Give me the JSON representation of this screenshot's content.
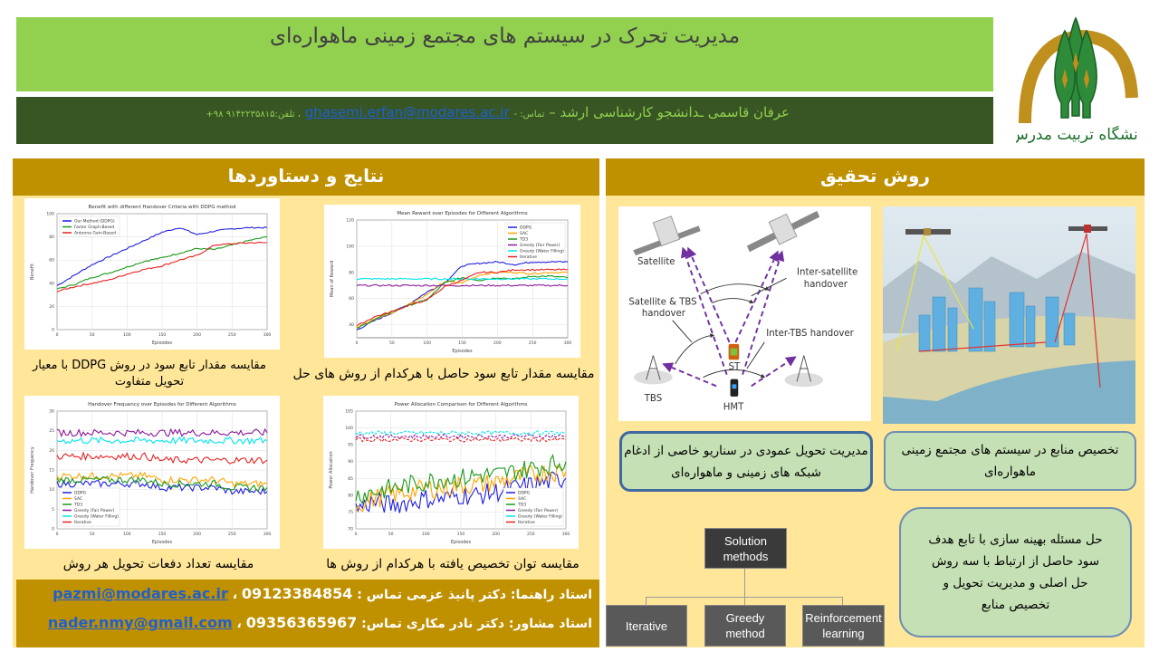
{
  "header": {
    "title": "مدیریت تحرک در سیستم های مجتمع زمینی ماهواره‌ای"
  },
  "info": {
    "name": "عرفان قاسمی ـدانشجو کارشناسی ارشد –",
    "contact_label": "تماس: -",
    "email": "ghasemi.erfan@modares.ac.ir",
    "phone_label": "، تلفن:",
    "phone": "۹۱۴۲۲۳۵۸۱۵ ۹۸+"
  },
  "logo": {
    "text": "دانشگاه تربیت مدرس"
  },
  "colors": {
    "title_green": "#92d050",
    "info_dark_green": "#375623",
    "gold": "#bf9000",
    "panel_yellow": "#ffe699",
    "box_green": "#c5e0b4"
  },
  "results": {
    "heading": "نتایج و دستاوردها",
    "captions": [
      "مقایسه مقدار تابع سود در روش DDPG  با معیار تحویل متفاوت",
      "مقایسه مقدار تابع سود حاصل با هرکدام از روش های حل",
      "مقایسه تعداد دفعات تحویل هر روش",
      "مقایسه توان تخصیص یافته با هرکدام از روش ها"
    ]
  },
  "advisors": {
    "supervisor_label": "استاد راهنما: دکتر پانیذ عزمی تماس :",
    "supervisor_email": "pazmi@modares.ac.ir",
    "supervisor_phone": "09123384854",
    "consultant_label": "استاد مشاور: دکتر نادر مکاری  تماس:",
    "consultant_email": "nader.nmy@gmail.com",
    "consultant_phone": "09356365967",
    "separator": "،"
  },
  "method": {
    "heading": "روش تحقیق",
    "diagram": {
      "satellite": "Satellite",
      "inter_satellite": [
        "Inter-satellite",
        "handover"
      ],
      "sat_tbs": [
        "Satellite & TBS",
        "handover"
      ],
      "inter_tbs": "Inter-TBS handover",
      "st": "ST",
      "tbs": "TBS",
      "hmt": "HMT"
    },
    "box_handover": "مدیریت تحویل عمودی در سناریو خاصی از ادغام شبکه های زمینی و ماهواره‌ای",
    "box_resource": "تخصیص منابع در سیستم های مجتمع زمینی ماهواره‌ای",
    "box_optimization": "حل مسئله بهینه سازی با تابع هدف سود حاصل از ارتباط با سه روش حل اصلی و مدیریت تحویل و تخصیص منابع",
    "tree": {
      "root": "Solution methods",
      "children": [
        "Iterative",
        "Greedy method",
        "Reinforcement learning"
      ]
    }
  },
  "chart_data": [
    {
      "type": "line",
      "title": "Benefit with different Handover Criteria with DDPG method",
      "xlabel": "Episodes",
      "ylabel": "Benefit",
      "xlim": [
        0,
        300
      ],
      "ylim": [
        0,
        100
      ],
      "xticks": [
        0,
        50,
        100,
        150,
        200,
        250,
        300
      ],
      "yticks": [
        0,
        20,
        40,
        60,
        80,
        100
      ],
      "grid": true,
      "legend": "top-left",
      "x": [
        0,
        25,
        50,
        75,
        100,
        125,
        150,
        175,
        200,
        225,
        250,
        275,
        300
      ],
      "series": [
        {
          "name": "Our Method (DDPG)",
          "color": "#1f1fe0",
          "values": [
            38,
            47,
            56,
            63,
            70,
            77,
            84,
            88,
            82,
            85,
            87,
            88,
            88
          ]
        },
        {
          "name": "Factor Graph-Based",
          "color": "#1a9a1a",
          "values": [
            35,
            39,
            45,
            49,
            54,
            59,
            62,
            66,
            70,
            69,
            73,
            77,
            80
          ]
        },
        {
          "name": "Antenna Gain-Based",
          "color": "#e82020",
          "values": [
            33,
            37,
            40,
            43,
            48,
            52,
            55,
            60,
            64,
            73,
            74,
            75,
            75
          ]
        }
      ]
    },
    {
      "type": "line",
      "title": "Mean Reward over Episodes for Different Algorithms",
      "xlabel": "Episodes",
      "ylabel": "Mean of Reward",
      "xlim": [
        0,
        300
      ],
      "ylim": [
        30,
        120
      ],
      "xticks": [
        0,
        50,
        100,
        150,
        200,
        250,
        300
      ],
      "yticks": [
        40,
        60,
        80,
        100,
        120
      ],
      "grid": true,
      "legend": "top-right",
      "x": [
        0,
        25,
        50,
        75,
        100,
        125,
        150,
        175,
        200,
        225,
        250,
        275,
        300
      ],
      "series": [
        {
          "name": "DDPG",
          "color": "#1f1fe0",
          "values": [
            36,
            43,
            49,
            56,
            65,
            72,
            85,
            87,
            88,
            86,
            88,
            88,
            88
          ]
        },
        {
          "name": "SAC",
          "color": "#ffa500",
          "values": [
            38,
            44,
            49,
            56,
            63,
            73,
            72,
            78,
            80,
            80,
            79,
            80,
            80
          ]
        },
        {
          "name": "TD3",
          "color": "#1a9a1a",
          "values": [
            37,
            44,
            50,
            55,
            59,
            72,
            76,
            74,
            76,
            75,
            77,
            77,
            76
          ]
        },
        {
          "name": "Greedy (Fair Power)",
          "color": "#8b1a9a",
          "values": [
            70,
            70,
            70,
            70,
            70,
            70,
            70,
            70,
            70,
            70,
            70,
            70,
            70
          ]
        },
        {
          "name": "Greedy (Water Filling)",
          "color": "#00e5ee",
          "values": [
            75,
            75,
            75,
            75,
            75,
            75,
            75,
            75,
            75,
            75,
            75,
            75,
            75
          ]
        },
        {
          "name": "Iterative",
          "color": "#e82020",
          "values": [
            39,
            46,
            50,
            55,
            59,
            69,
            74,
            80,
            80,
            82,
            82,
            82,
            82
          ]
        }
      ]
    },
    {
      "type": "line",
      "title": "Handover Frequency over Episodes for Different Algorithms",
      "xlabel": "Episodes",
      "ylabel": "Handover Frequency",
      "xlim": [
        0,
        300
      ],
      "ylim": [
        0,
        30
      ],
      "xticks": [
        0,
        50,
        100,
        150,
        200,
        250,
        300
      ],
      "yticks": [
        0,
        5,
        10,
        15,
        20,
        25,
        30
      ],
      "grid": true,
      "legend": "bottom-left",
      "x": [
        0,
        25,
        50,
        75,
        100,
        125,
        150,
        175,
        200,
        225,
        250,
        275,
        300
      ],
      "series": [
        {
          "name": "DDPG",
          "color": "#1f1fe0",
          "values": [
            11.5,
            11.5,
            11.5,
            11.5,
            11.5,
            11.5,
            10.5,
            10.5,
            10.5,
            10.5,
            9.5,
            9.5,
            9.5
          ]
        },
        {
          "name": "SAC",
          "color": "#ffa500",
          "values": [
            13.5,
            13.5,
            13.5,
            13.5,
            13.5,
            13.5,
            12.5,
            12.5,
            12.5,
            12.5,
            11.5,
            11.5,
            11.5
          ]
        },
        {
          "name": "TD3",
          "color": "#1a9a1a",
          "values": [
            12.5,
            12.5,
            12.5,
            12.5,
            12.5,
            12.5,
            11.5,
            11.5,
            11.5,
            11.5,
            10.5,
            10.5,
            10.5
          ]
        },
        {
          "name": "Greedy (Fair Power)",
          "color": "#8b1a9a",
          "values": [
            24.5,
            24.5,
            24.5,
            24.5,
            24.5,
            24.5,
            24.5,
            24.5,
            24.5,
            24.5,
            24.5,
            24.5,
            24.5
          ]
        },
        {
          "name": "Greedy (Water Filling)",
          "color": "#00e5ee",
          "values": [
            22.5,
            22.5,
            22.5,
            22.5,
            22.5,
            22.5,
            22.5,
            22.5,
            22.5,
            22.5,
            22.5,
            22.5,
            22.5
          ]
        },
        {
          "name": "Iterative",
          "color": "#e82020",
          "values": [
            18.5,
            18.5,
            18.5,
            18.5,
            18.5,
            18.5,
            17.5,
            17.5,
            17.5,
            17.5,
            17.5,
            17.5,
            17.5
          ]
        }
      ]
    },
    {
      "type": "line",
      "title": "Power Allocation Comparison for Different Algorithms",
      "xlabel": "Episodes",
      "ylabel": "Power Allocation",
      "xlim": [
        0,
        300
      ],
      "ylim": [
        70,
        105
      ],
      "xticks": [
        0,
        50,
        100,
        150,
        200,
        250,
        300
      ],
      "yticks": [
        70,
        75,
        80,
        85,
        90,
        95,
        100,
        105
      ],
      "grid": true,
      "legend": "bottom-right",
      "x": [
        0,
        25,
        50,
        75,
        100,
        125,
        150,
        175,
        200,
        225,
        250,
        275,
        300
      ],
      "series": [
        {
          "name": "DDPG",
          "color": "#1f1fe0",
          "values": [
            76,
            78,
            77,
            78,
            79,
            79,
            80,
            80,
            81,
            82,
            83,
            84,
            85
          ]
        },
        {
          "name": "SAC",
          "color": "#ffa500",
          "values": [
            77,
            79,
            80,
            81,
            82,
            82,
            83,
            83,
            84,
            85,
            86,
            87,
            87
          ]
        },
        {
          "name": "TD3",
          "color": "#1a9a1a",
          "values": [
            80,
            81,
            82,
            83,
            84,
            85,
            85,
            86,
            86,
            87,
            88,
            89,
            90
          ]
        },
        {
          "name": "Greedy (Fair Power)",
          "color": "#8b1a9a",
          "dashed": true,
          "values": [
            97.5,
            97.5,
            97.5,
            97.5,
            97.5,
            97.5,
            97.5,
            97.5,
            97.5,
            97.5,
            97.5,
            97.5,
            97.5
          ]
        },
        {
          "name": "Greedy (Water Filling)",
          "color": "#00e5ee",
          "dashed": true,
          "values": [
            98.5,
            98.5,
            98.5,
            98.5,
            98.5,
            98.5,
            98.5,
            98.5,
            98.5,
            98.5,
            98.5,
            98.5,
            98.5
          ]
        },
        {
          "name": "Iterative",
          "color": "#e82020",
          "dashed": true,
          "values": [
            96.5,
            96.5,
            96.5,
            96.5,
            96.5,
            96.5,
            96.5,
            96.5,
            96.5,
            96.5,
            96.5,
            96.5,
            96.5
          ]
        }
      ]
    }
  ]
}
